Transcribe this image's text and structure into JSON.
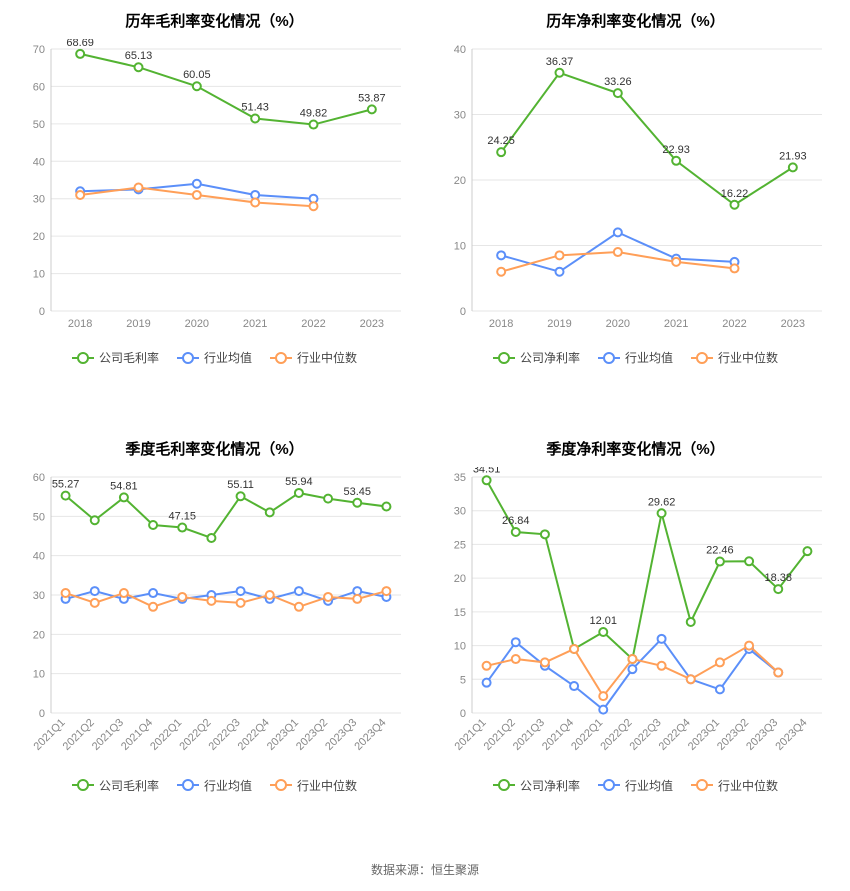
{
  "source_label": "数据来源：恒生聚源",
  "colors": {
    "green": "#53b332",
    "blue": "#5b8ff9",
    "orange": "#ff9f58",
    "grid": "#e6e6e6",
    "axis": "#cccccc",
    "tick_text": "#888888",
    "point_fill": "#ffffff"
  },
  "charts": {
    "gross_annual": {
      "title": "历年毛利率变化情况（%）",
      "type": "line",
      "x_labels": [
        "2018",
        "2019",
        "2020",
        "2021",
        "2022",
        "2023"
      ],
      "x_rotate": false,
      "ylim": [
        0,
        70
      ],
      "ytick_step": 10,
      "series": [
        {
          "name": "公司毛利率",
          "color": "green",
          "values": [
            68.69,
            65.13,
            60.05,
            51.43,
            49.82,
            53.87
          ],
          "labels": [
            68.69,
            65.13,
            60.05,
            51.43,
            49.82,
            53.87
          ]
        },
        {
          "name": "行业均值",
          "color": "blue",
          "values": [
            32,
            32.5,
            34,
            31,
            30,
            null
          ]
        },
        {
          "name": "行业中位数",
          "color": "orange",
          "values": [
            31,
            33,
            31,
            29,
            28,
            null
          ]
        }
      ],
      "legend": [
        {
          "swatch": "green",
          "label": "公司毛利率"
        },
        {
          "swatch": "blue",
          "label": "行业均值"
        },
        {
          "swatch": "orange",
          "label": "行业中位数"
        }
      ]
    },
    "net_annual": {
      "title": "历年净利率变化情况（%）",
      "type": "line",
      "x_labels": [
        "2018",
        "2019",
        "2020",
        "2021",
        "2022",
        "2023"
      ],
      "x_rotate": false,
      "ylim": [
        0,
        40
      ],
      "ytick_step": 10,
      "series": [
        {
          "name": "公司净利率",
          "color": "green",
          "values": [
            24.25,
            36.37,
            33.26,
            22.93,
            16.22,
            21.93
          ],
          "labels": [
            24.25,
            36.37,
            33.26,
            22.93,
            16.22,
            21.93
          ]
        },
        {
          "name": "行业均值",
          "color": "blue",
          "values": [
            8.5,
            6,
            12,
            8,
            7.5,
            null
          ]
        },
        {
          "name": "行业中位数",
          "color": "orange",
          "values": [
            6,
            8.5,
            9,
            7.5,
            6.5,
            null
          ]
        }
      ],
      "legend": [
        {
          "swatch": "green",
          "label": "公司净利率"
        },
        {
          "swatch": "blue",
          "label": "行业均值"
        },
        {
          "swatch": "orange",
          "label": "行业中位数"
        }
      ]
    },
    "gross_quarterly": {
      "title": "季度毛利率变化情况（%）",
      "type": "line",
      "x_labels": [
        "2021Q1",
        "2021Q2",
        "2021Q3",
        "2021Q4",
        "2022Q1",
        "2022Q2",
        "2022Q3",
        "2022Q4",
        "2023Q1",
        "2023Q2",
        "2023Q3",
        "2023Q4"
      ],
      "x_rotate": true,
      "ylim": [
        0,
        60
      ],
      "ytick_step": 10,
      "series": [
        {
          "name": "公司毛利率",
          "color": "green",
          "values": [
            55.27,
            49.0,
            54.81,
            47.8,
            47.15,
            44.5,
            55.11,
            51.0,
            55.94,
            54.5,
            53.45,
            52.5
          ],
          "labels": [
            55.27,
            null,
            54.81,
            null,
            47.15,
            null,
            55.11,
            null,
            55.94,
            null,
            53.45,
            null
          ]
        },
        {
          "name": "行业均值",
          "color": "blue",
          "values": [
            29,
            31,
            29,
            30.5,
            29,
            30,
            31,
            29,
            31,
            28.5,
            31,
            29.5
          ]
        },
        {
          "name": "行业中位数",
          "color": "orange",
          "values": [
            30.5,
            28,
            30.5,
            27,
            29.5,
            28.5,
            28,
            30,
            27,
            29.5,
            29,
            31
          ]
        }
      ],
      "legend": [
        {
          "swatch": "green",
          "label": "公司毛利率"
        },
        {
          "swatch": "blue",
          "label": "行业均值"
        },
        {
          "swatch": "orange",
          "label": "行业中位数"
        }
      ]
    },
    "net_quarterly": {
      "title": "季度净利率变化情况（%）",
      "type": "line",
      "x_labels": [
        "2021Q1",
        "2021Q2",
        "2021Q3",
        "2021Q4",
        "2022Q1",
        "2022Q2",
        "2022Q3",
        "2022Q4",
        "2023Q1",
        "2023Q2",
        "2023Q3",
        "2023Q4"
      ],
      "x_rotate": true,
      "ylim": [
        0,
        35
      ],
      "ytick_step": 5,
      "series": [
        {
          "name": "公司净利率",
          "color": "green",
          "values": [
            34.51,
            26.84,
            26.5,
            9.5,
            12.01,
            8.0,
            29.62,
            13.5,
            22.46,
            22.5,
            18.38,
            24.0
          ],
          "labels": [
            34.51,
            26.84,
            null,
            null,
            12.01,
            null,
            29.62,
            null,
            22.46,
            null,
            18.38,
            null
          ]
        },
        {
          "name": "行业均值",
          "color": "blue",
          "values": [
            4.5,
            10.5,
            7.0,
            4.0,
            0.5,
            6.5,
            11.0,
            5.0,
            3.5,
            9.5,
            6.0,
            null
          ]
        },
        {
          "name": "行业中位数",
          "color": "orange",
          "values": [
            7.0,
            8.0,
            7.5,
            9.5,
            2.5,
            8.0,
            7.0,
            5.0,
            7.5,
            10.0,
            6.0,
            null
          ]
        }
      ],
      "legend": [
        {
          "swatch": "green",
          "label": "公司净利率"
        },
        {
          "swatch": "blue",
          "label": "行业均值"
        },
        {
          "swatch": "orange",
          "label": "行业中位数"
        }
      ]
    }
  }
}
